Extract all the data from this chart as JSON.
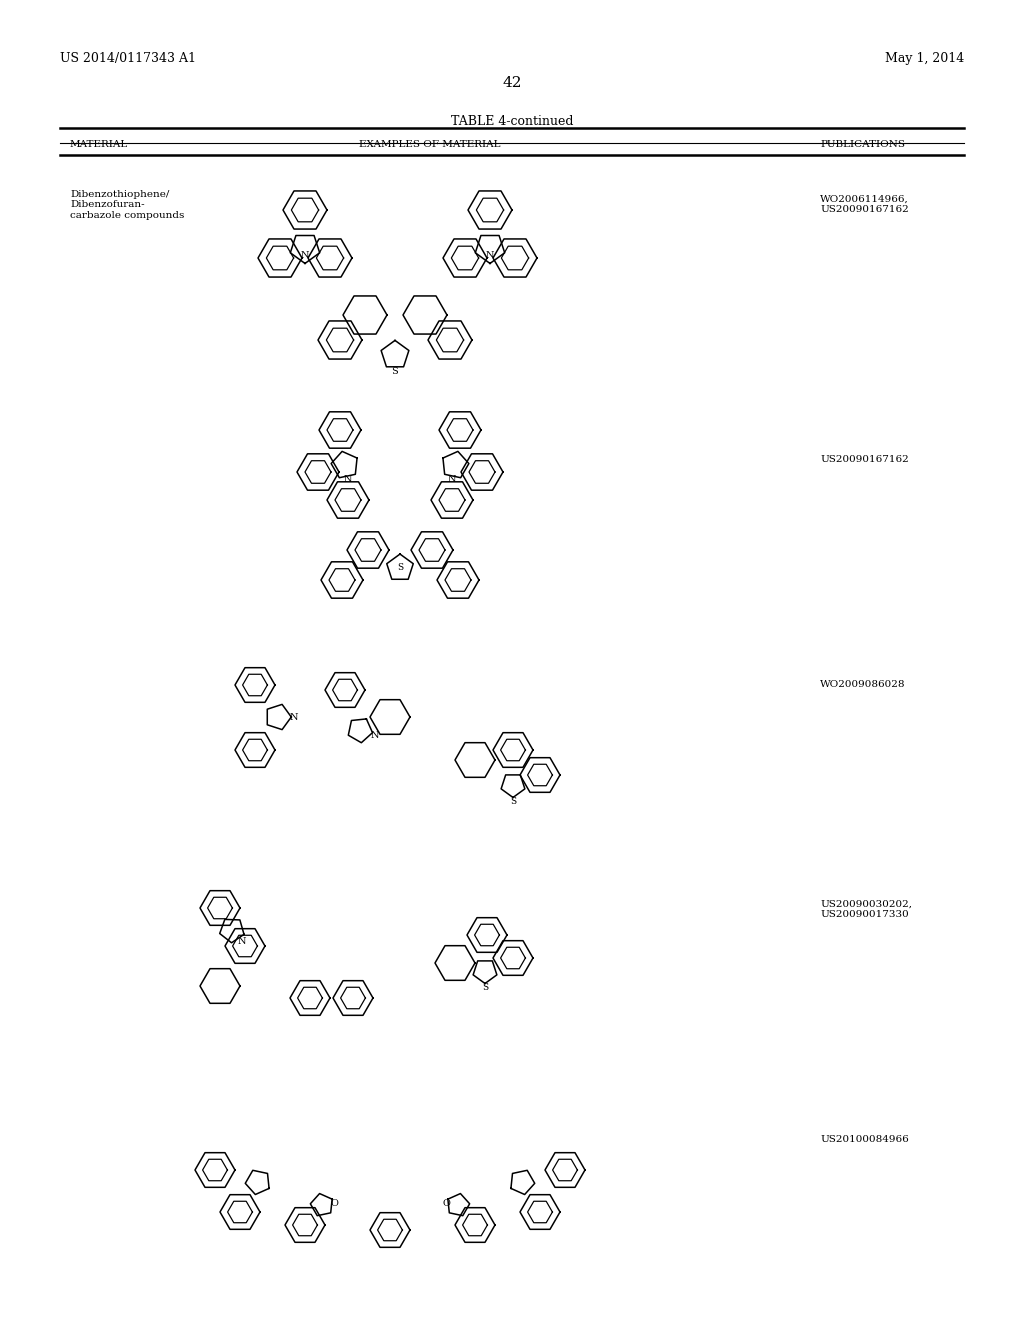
{
  "page_header_left": "US 2014/0117343 A1",
  "page_header_right": "May 1, 2014",
  "page_number": "42",
  "table_title": "TABLE 4-continued",
  "col1_header": "MATERIAL",
  "col2_header": "EXAMPLES OF MATERIAL",
  "col3_header": "PUBLICATIONS",
  "material_name": "Dibenzothiophene/\nDibenzofuran-\ncarbazole compounds",
  "publications": [
    "WO2006114966,\nUS20090167162",
    "US20090167162",
    "WO2009086028",
    "US20090030202,\nUS20090017330",
    "US20100084966"
  ],
  "pub_y_img": [
    195,
    455,
    680,
    900,
    1135
  ],
  "background_color": "#ffffff",
  "text_color": "#000000",
  "lw_struct": 1.1,
  "lw_table_heavy": 1.8,
  "lw_table_light": 0.8
}
